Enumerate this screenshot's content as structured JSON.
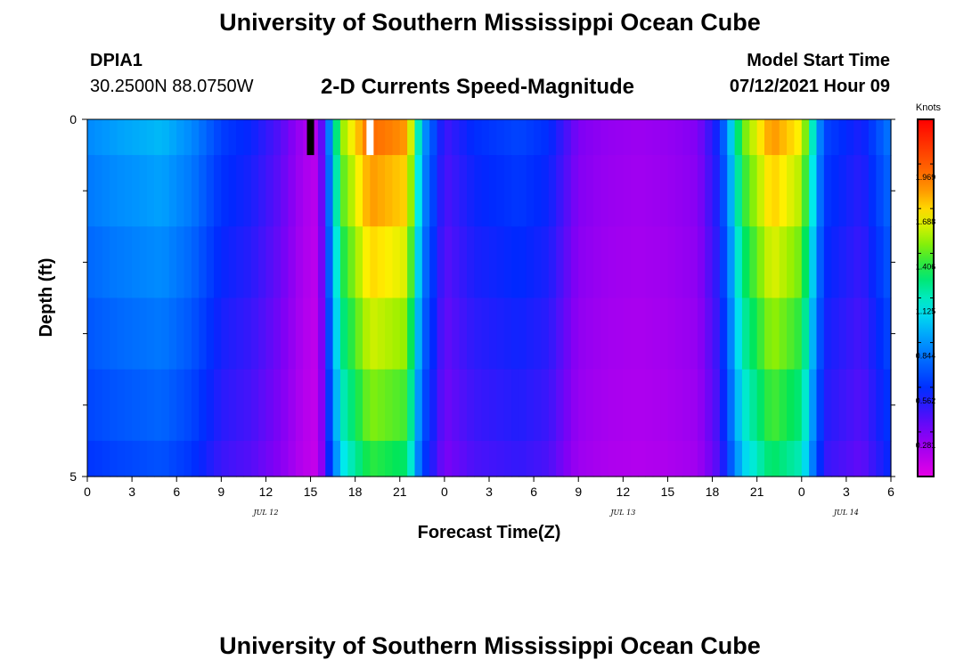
{
  "header": {
    "title": "University of Southern Mississippi Ocean Cube",
    "station_id": "DPIA1",
    "coords": "30.2500N  88.0750W",
    "subtitle": "2-D Currents Speed-Magnitude",
    "model_start_label": "Model Start Time",
    "model_start_value": "07/12/2021 Hour 09"
  },
  "footer": {
    "title": "University of Southern Mississippi Ocean Cube"
  },
  "chart_data": {
    "type": "heatmap",
    "title": "2-D Currents Speed-Magnitude",
    "xlabel": "Forecast Time(Z)",
    "ylabel": "Depth (ft)",
    "units_label": "Knots",
    "x_hours_range": [
      0,
      54
    ],
    "x_tick_hours": [
      0,
      3,
      6,
      9,
      12,
      15,
      18,
      21,
      24,
      27,
      30,
      33,
      36,
      39,
      42,
      45,
      48,
      51,
      54
    ],
    "x_tick_labels": [
      "0",
      "3",
      "6",
      "9",
      "12",
      "15",
      "18",
      "21",
      "0",
      "3",
      "6",
      "9",
      "12",
      "15",
      "18",
      "21",
      "0",
      "3",
      "6"
    ],
    "date_labels": [
      {
        "hour": 12,
        "text": "JUL 12"
      },
      {
        "hour": 36,
        "text": "JUL 13"
      },
      {
        "hour": 51,
        "text": "JUL 14"
      }
    ],
    "y_range": [
      0,
      5
    ],
    "y_tick_labels": [
      {
        "value": 0,
        "text": "0"
      },
      {
        "value": 5,
        "text": "5"
      }
    ],
    "y_minor_ticks": [
      1,
      2,
      3,
      4
    ],
    "layer_bounds": [
      0,
      0.5,
      1.5,
      2.5,
      3.5,
      4.5,
      5
    ],
    "colorbar": {
      "ticks": [
        1.969,
        1.688,
        1.406,
        1.125,
        0.844,
        0.562,
        0.281
      ],
      "tick_labels": [
        "1.969",
        "1.688",
        "1.406",
        "1.125",
        "0.844",
        "0.562",
        "0.281"
      ],
      "min": 0.0,
      "max": 2.25
    },
    "now_marker_hour": 15,
    "highlight_marker_hour": 19,
    "speed_profile_hours": [
      0,
      2,
      5,
      7,
      9,
      11,
      13,
      14.5,
      15.5,
      17,
      19,
      21.5,
      22.5,
      24,
      26,
      29,
      31,
      33,
      35,
      37,
      39,
      41,
      42.5,
      44,
      46,
      48,
      49.5,
      52,
      54
    ],
    "speed_profile_knots": [
      0.82,
      0.88,
      0.94,
      0.82,
      0.6,
      0.52,
      0.36,
      0.18,
      0.12,
      1.45,
      1.92,
      1.8,
      0.9,
      0.4,
      0.55,
      0.62,
      0.55,
      0.28,
      0.22,
      0.2,
      0.22,
      0.27,
      0.55,
      1.4,
      1.82,
      1.62,
      0.62,
      0.48,
      0.78
    ],
    "depth_factors": [
      1.0,
      0.94,
      0.88,
      0.82,
      0.76,
      0.7
    ]
  }
}
